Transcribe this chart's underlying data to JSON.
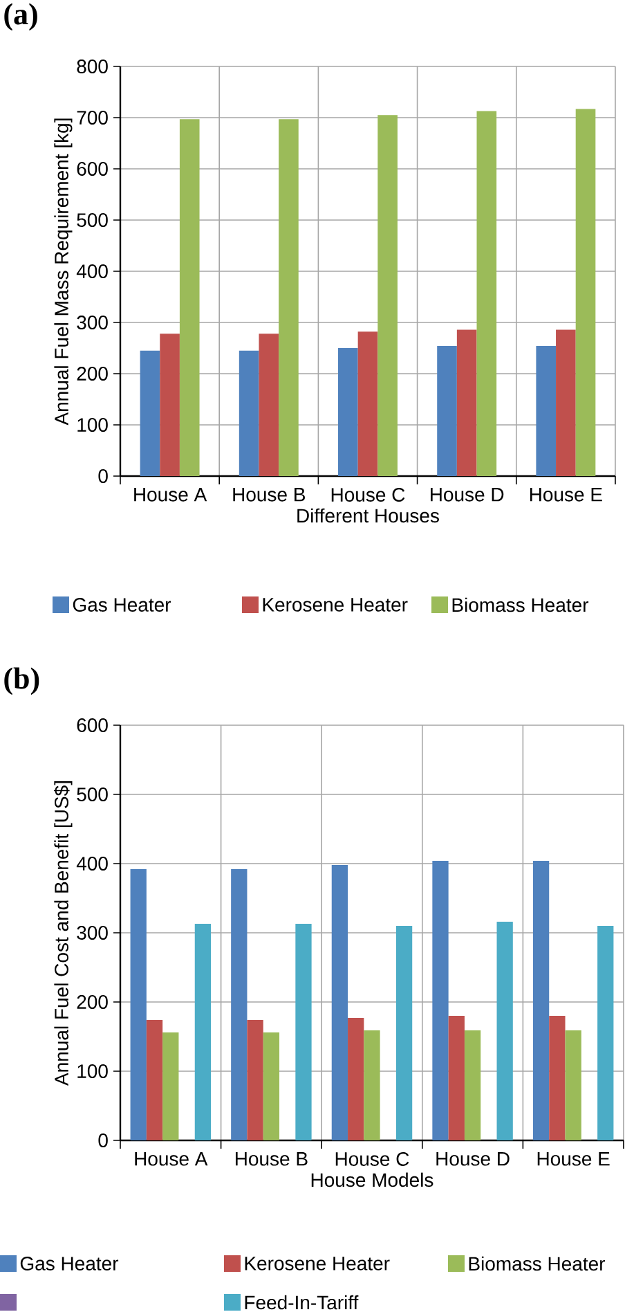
{
  "chart_data": [
    {
      "type": "bar",
      "title": "(a)",
      "xlabel": "Different Houses",
      "ylabel": "Annual Fuel Mass Requirement [kg]",
      "categories": [
        "House A",
        "House B",
        "House C",
        "House D",
        "House E"
      ],
      "series": [
        {
          "name": "Gas Heater",
          "color": "#4f81bd",
          "values": [
            245,
            245,
            250,
            254,
            254
          ]
        },
        {
          "name": "Kerosene Heater",
          "color": "#c0504d",
          "values": [
            278,
            278,
            282,
            286,
            286
          ]
        },
        {
          "name": "Biomass Heater",
          "color": "#9bbb59",
          "values": [
            697,
            697,
            705,
            713,
            717
          ]
        }
      ],
      "ylim": [
        0,
        800
      ],
      "yticks": [
        0,
        100,
        200,
        300,
        400,
        500,
        600,
        700,
        800
      ],
      "grid": true,
      "legend": "bottom"
    },
    {
      "type": "bar",
      "title": "(b)",
      "xlabel": "House Models",
      "ylabel": "Annual Fuel Cost and Benefit [US$]",
      "categories": [
        "House A",
        "House B",
        "House C",
        "House D",
        "House E"
      ],
      "series": [
        {
          "name": "Gas Heater",
          "color": "#4f81bd",
          "values": [
            392,
            392,
            398,
            404,
            404
          ]
        },
        {
          "name": "Kerosene Heater",
          "color": "#c0504d",
          "values": [
            174,
            174,
            177,
            180,
            180
          ]
        },
        {
          "name": "Biomass Heater",
          "color": "#9bbb59",
          "values": [
            156,
            156,
            159,
            159,
            159
          ]
        },
        {
          "color": "#8064a2",
          "values": [
            null,
            null,
            null,
            null,
            null
          ]
        },
        {
          "name": "Feed-In-Tariff",
          "color": "#4bacc6",
          "values": [
            313,
            313,
            310,
            316,
            310
          ]
        }
      ],
      "ylim": [
        0,
        600
      ],
      "yticks": [
        0,
        100,
        200,
        300,
        400,
        500,
        600
      ],
      "grid": true,
      "legend": "bottom"
    }
  ]
}
